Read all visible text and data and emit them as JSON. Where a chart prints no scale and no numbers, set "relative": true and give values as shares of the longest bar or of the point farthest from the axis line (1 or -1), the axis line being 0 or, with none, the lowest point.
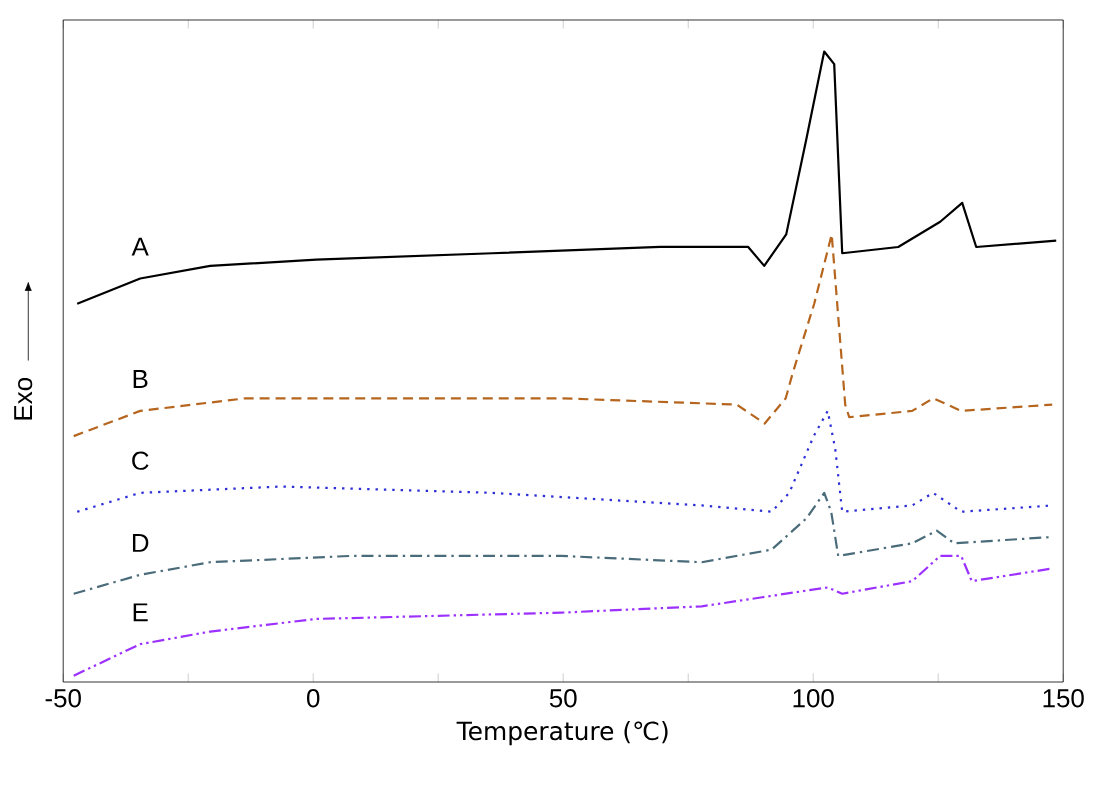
{
  "chart_data": {
    "type": "line",
    "relative": true,
    "xlabel": "Temperature (℃)",
    "ylabel": "Exo",
    "xlim": [
      -50,
      150
    ],
    "xticks": [
      -50,
      {
        "value": -25,
        "label": null
      },
      0,
      {
        "value": 25,
        "label": null
      },
      50,
      {
        "value": 75,
        "label": null
      },
      100,
      {
        "value": 125,
        "label": null
      },
      150
    ],
    "grid": false,
    "tick_labels": "x",
    "series": [
      {
        "name": "A",
        "color": "#000000",
        "line_style": "solid",
        "x": [
          -47.2,
          -34.6,
          -20.6,
          0.6,
          35.8,
          69.4,
          87,
          90.2,
          94.6,
          98.6,
          102.2,
          104.2,
          105.8,
          117,
          125.4,
          129.8,
          132.6,
          148.6
        ],
        "values": [
          0.6,
          0.64,
          0.66,
          0.67,
          0.68,
          0.69,
          0.69,
          0.66,
          0.71,
          0.86,
          1.0,
          0.98,
          0.68,
          0.69,
          0.73,
          0.76,
          0.69,
          0.7
        ]
      },
      {
        "name": "B",
        "color": "#b5651d",
        "line_style": "dashed",
        "x": [
          -47.9,
          -34.6,
          -13.5,
          0.5,
          49.6,
          84.7,
          90.3,
          94.5,
          95.9,
          100.2,
          103.7,
          105,
          106.4,
          107.2,
          119.8,
          124,
          129.6,
          147.8
        ],
        "values": [
          0.39,
          0.43,
          0.45,
          0.45,
          0.45,
          0.44,
          0.41,
          0.45,
          0.49,
          0.6,
          0.71,
          0.58,
          0.44,
          0.42,
          0.43,
          0.45,
          0.43,
          0.44
        ]
      },
      {
        "name": "C",
        "color": "#2e2ed6",
        "line_style": "dotted",
        "x": [
          -47.2,
          -34.6,
          -6.5,
          35.6,
          77.7,
          91.7,
          95.2,
          100.1,
          102.9,
          104.4,
          105.8,
          119.8,
          124,
          129.6,
          147.8
        ],
        "values": [
          0.27,
          0.3,
          0.31,
          0.3,
          0.28,
          0.27,
          0.3,
          0.39,
          0.43,
          0.37,
          0.27,
          0.28,
          0.3,
          0.27,
          0.28
        ]
      },
      {
        "name": "D",
        "color": "#4a6b7a",
        "line_style": "dashdotted",
        "x": [
          -47.9,
          -34.6,
          -20.6,
          7.5,
          49.6,
          77.7,
          91.7,
          98.7,
          102.2,
          103.6,
          105,
          119.8,
          124.7,
          128.2,
          147.8
        ],
        "values": [
          0.14,
          0.17,
          0.19,
          0.2,
          0.2,
          0.19,
          0.21,
          0.26,
          0.3,
          0.27,
          0.2,
          0.22,
          0.24,
          0.22,
          0.23
        ]
      },
      {
        "name": "E",
        "color": "#9b30ff",
        "line_style": "dashdotdotted",
        "x": [
          -47.9,
          -34.6,
          -20.6,
          0.5,
          49.6,
          77.7,
          102.9,
          105.8,
          119.8,
          125.4,
          129.6,
          131.7,
          147.8
        ],
        "values": [
          0.01,
          0.06,
          0.08,
          0.1,
          0.11,
          0.12,
          0.15,
          0.14,
          0.16,
          0.2,
          0.2,
          0.16,
          0.18
        ]
      }
    ]
  }
}
